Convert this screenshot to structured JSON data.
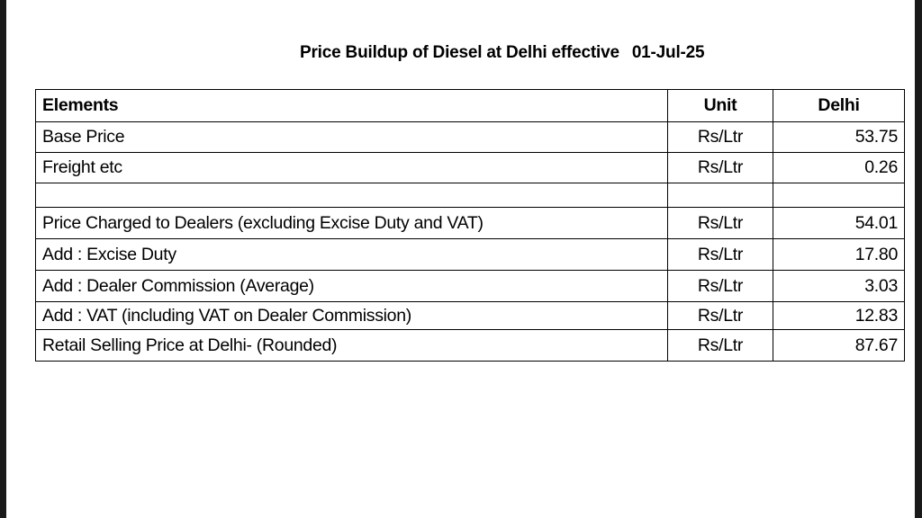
{
  "title": {
    "text": "Price Buildup of Diesel at Delhi effective",
    "date": "01-Jul-25"
  },
  "table": {
    "headers": [
      "Elements",
      "Unit",
      "Delhi"
    ],
    "rows": [
      {
        "element": "Base Price",
        "unit": "Rs/Ltr",
        "value": "53.75"
      },
      {
        "element": "Freight etc",
        "unit": "Rs/Ltr",
        "value": "0.26"
      },
      {
        "element": "",
        "unit": "",
        "value": ""
      },
      {
        "element": "Price Charged to Dealers (excluding  Excise Duty and VAT)",
        "unit": "Rs/Ltr",
        "value": "54.01"
      },
      {
        "element": "Add :  Excise Duty",
        "unit": "Rs/Ltr",
        "value": "17.80"
      },
      {
        "element": "Add : Dealer Commission (Average)",
        "unit": "Rs/Ltr",
        "value": "3.03"
      },
      {
        "element": "Add : VAT (including VAT on Dealer Commission)",
        "unit": "Rs/Ltr",
        "value": "12.83"
      },
      {
        "element": "Retail Selling Price at Delhi- (Rounded)",
        "unit": "Rs/Ltr",
        "value": "87.67"
      }
    ]
  }
}
